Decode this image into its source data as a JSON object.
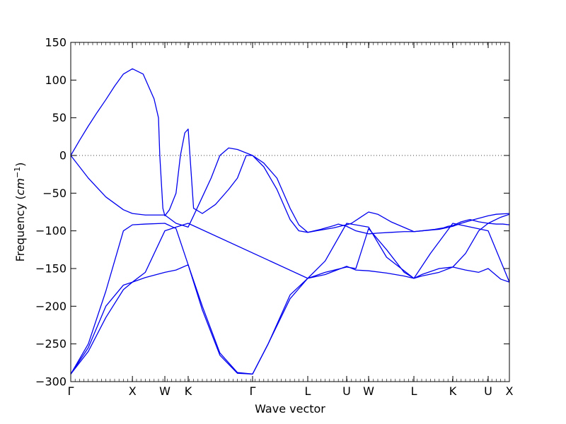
{
  "chart_data": {
    "type": "line",
    "title": "",
    "xlabel": "Wave vector",
    "ylabel_prefix": "Frequency (",
    "ylabel_unit": "cm",
    "ylabel_exp": "−1",
    "ylabel_suffix": ")",
    "ylim": [
      -300,
      150
    ],
    "yticks": [
      -300,
      -250,
      -200,
      -150,
      -100,
      -50,
      0,
      50,
      100,
      150
    ],
    "xlim": [
      0,
      1
    ],
    "high_symmetry_points": [
      {
        "label": "Γ",
        "x": 0.0
      },
      {
        "label": "X",
        "x": 0.1406
      },
      {
        "label": "W",
        "x": 0.2145
      },
      {
        "label": "K",
        "x": 0.2677
      },
      {
        "label": "Γ",
        "x": 0.4145
      },
      {
        "label": "L",
        "x": 0.5403
      },
      {
        "label": "U",
        "x": 0.629
      },
      {
        "label": "W",
        "x": 0.679
      },
      {
        "label": "L",
        "x": 0.7823
      },
      {
        "label": "K",
        "x": 0.871
      },
      {
        "label": "U",
        "x": 0.9516
      },
      {
        "label": "X",
        "x": 1.0
      }
    ],
    "zero_line": {
      "y": 0,
      "style": "dotted"
    },
    "series": [
      {
        "x": [
          0,
          0.02,
          0.04,
          0.06,
          0.08,
          0.1,
          0.12,
          0.1406,
          0.165,
          0.19,
          0.2,
          0.203,
          0.21,
          0.2145,
          0.225,
          0.24,
          0.25,
          0.26,
          0.2677,
          0.28,
          0.3,
          0.33,
          0.36,
          0.38,
          0.39,
          0.4,
          0.4145,
          0.44,
          0.47,
          0.5,
          0.52,
          0.5403,
          0.57,
          0.6,
          0.61,
          0.629,
          0.65,
          0.679,
          0.7,
          0.73,
          0.76,
          0.7823,
          0.8,
          0.83,
          0.85,
          0.86,
          0.871,
          0.89,
          0.91,
          0.93,
          0.9516,
          0.97,
          0.985,
          1.0
        ],
        "y": [
          0,
          20,
          39,
          57,
          74,
          92,
          108,
          115,
          108,
          75,
          50,
          0,
          -70,
          -80,
          -72,
          -50,
          0,
          30,
          35,
          -70,
          -77,
          -65,
          -45,
          -30,
          -15,
          0,
          0,
          -15,
          -45,
          -85,
          -100,
          -102,
          -98,
          -93,
          -91,
          -94,
          -100,
          -104,
          -103,
          -102,
          -101,
          -101,
          -100,
          -98,
          -96,
          -94,
          -93,
          -88,
          -85,
          -88,
          -90,
          -91,
          -91,
          -92
        ]
      },
      {
        "x": [
          0,
          0.04,
          0.08,
          0.12,
          0.1406,
          0.17,
          0.2145,
          0.24,
          0.2677,
          0.28,
          0.3,
          0.32,
          0.34,
          0.36,
          0.38,
          0.4145,
          0.44,
          0.47,
          0.5,
          0.52,
          0.5403,
          0.56,
          0.58,
          0.6,
          0.62,
          0.629,
          0.64,
          0.679,
          0.7,
          0.73,
          0.7823,
          0.8,
          0.84,
          0.871,
          0.89,
          0.92,
          0.9516,
          0.97,
          1.0
        ],
        "y": [
          0,
          -30,
          -55,
          -72,
          -77,
          -79,
          -79,
          -90,
          -95,
          -80,
          -55,
          -30,
          0,
          10,
          8,
          0,
          -10,
          -30,
          -70,
          -92,
          -102,
          -100,
          -98,
          -96,
          -93,
          -92,
          -90,
          -75,
          -78,
          -88,
          -101,
          -100,
          -98,
          -94,
          -90,
          -85,
          -80,
          -78,
          -77
        ]
      },
      {
        "x": [
          0,
          0.04,
          0.08,
          0.12,
          0.1406,
          0.17,
          0.2145,
          0.24,
          0.2677,
          0.3,
          0.34,
          0.38,
          0.4145,
          0.45,
          0.5,
          0.5403,
          0.58,
          0.629,
          0.65,
          0.679,
          0.72,
          0.76,
          0.7823,
          0.8,
          0.84,
          0.871,
          0.9,
          0.93,
          0.9516,
          0.98,
          1.0
        ],
        "y": [
          -290,
          -250,
          -180,
          -100,
          -92,
          -91,
          -90,
          -97,
          -145,
          -200,
          -262,
          -288,
          -290,
          -250,
          -190,
          -163,
          -155,
          -148,
          -150,
          -97,
          -125,
          -155,
          -163,
          -158,
          -150,
          -148,
          -130,
          -100,
          -90,
          -82,
          -78
        ]
      },
      {
        "x": [
          0,
          0.04,
          0.08,
          0.12,
          0.1406,
          0.17,
          0.2145,
          0.24,
          0.2677,
          0.3,
          0.34,
          0.38,
          0.4145,
          0.45,
          0.5,
          0.5403,
          0.58,
          0.629,
          0.65,
          0.679,
          0.72,
          0.76,
          0.7823,
          0.8,
          0.84,
          0.871,
          0.9,
          0.93,
          0.9516,
          0.98,
          1.0
        ],
        "y": [
          -290,
          -260,
          -215,
          -178,
          -168,
          -162,
          -155,
          -152,
          -145,
          -205,
          -265,
          -289,
          -290,
          -250,
          -185,
          -163,
          -158,
          -147,
          -152,
          -153,
          -156,
          -160,
          -163,
          -160,
          -155,
          -148,
          -152,
          -155,
          -150,
          -164,
          -168
        ]
      },
      {
        "x": [
          0,
          0.04,
          0.08,
          0.12,
          0.1406,
          0.17,
          0.2145,
          0.24,
          0.2677,
          0.5403,
          0.58,
          0.629,
          0.679,
          0.72,
          0.7823,
          0.82,
          0.871,
          0.9516,
          1.0
        ],
        "y": [
          -290,
          -255,
          -200,
          -172,
          -168,
          -155,
          -100,
          -95,
          -90,
          -163,
          -140,
          -90,
          -95,
          -135,
          -163,
          -130,
          -90,
          -100,
          -168
        ]
      }
    ]
  }
}
